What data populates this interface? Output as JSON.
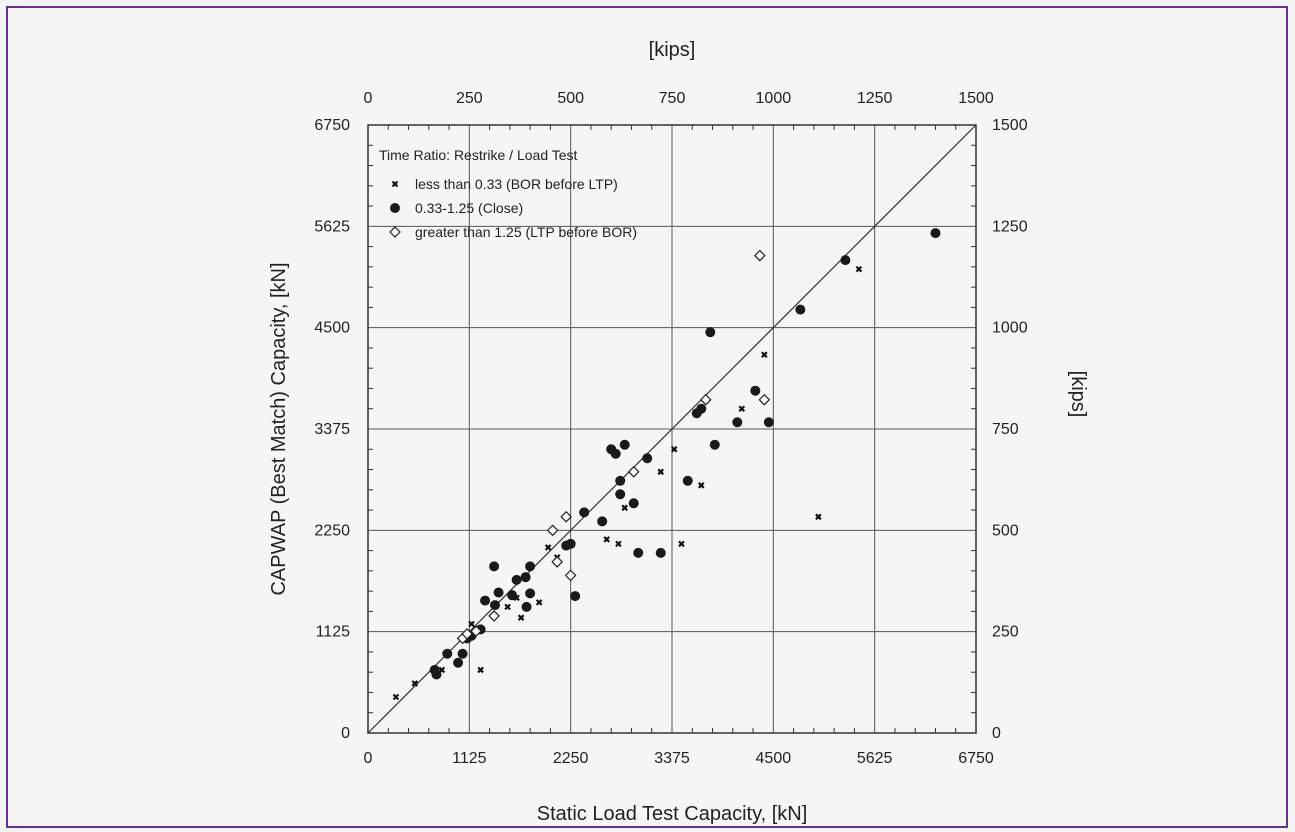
{
  "chart_data": {
    "type": "scatter",
    "xlabel": "Static Load Test Capacity, [kN]",
    "ylabel": "CAPWAP (Best Match) Capacity, [kN]",
    "x2label": "[kips]",
    "y2label": "[kips]",
    "xlim": [
      0,
      6750
    ],
    "ylim": [
      0,
      6750
    ],
    "x2lim": [
      0,
      1500
    ],
    "y2lim": [
      0,
      1500
    ],
    "x_ticks": [
      "0",
      "1125",
      "2250",
      "3375",
      "4500",
      "5625",
      "6750"
    ],
    "y_ticks": [
      "0",
      "1125",
      "2250",
      "3375",
      "4500",
      "5625",
      "6750"
    ],
    "x2_ticks": [
      "0",
      "250",
      "500",
      "750",
      "1000",
      "1250",
      "1500"
    ],
    "y2_ticks": [
      "0",
      "250",
      "500",
      "750",
      "1000",
      "1250",
      "1500"
    ],
    "grid": true,
    "reference_line": {
      "from": [
        0,
        0
      ],
      "to": [
        6750,
        6750
      ]
    },
    "legend": {
      "title": "Time Ratio: Restrike / Load Test",
      "placement": "top-left"
    },
    "series": [
      {
        "name": "less than 0.33 (BOR before LTP)",
        "marker": "small-cross",
        "points": [
          [
            310,
            400
          ],
          [
            520,
            550
          ],
          [
            820,
            700
          ],
          [
            1050,
            880
          ],
          [
            1150,
            1210
          ],
          [
            1250,
            700
          ],
          [
            1550,
            1400
          ],
          [
            1650,
            1500
          ],
          [
            1700,
            1280
          ],
          [
            1900,
            1450
          ],
          [
            2000,
            2060
          ],
          [
            2100,
            1950
          ],
          [
            2650,
            2150
          ],
          [
            2780,
            2100
          ],
          [
            2850,
            2500
          ],
          [
            3250,
            2900
          ],
          [
            3400,
            3150
          ],
          [
            3480,
            2100
          ],
          [
            3700,
            2750
          ],
          [
            4150,
            3600
          ],
          [
            4400,
            4200
          ],
          [
            5000,
            2400
          ],
          [
            5450,
            5150
          ]
        ]
      },
      {
        "name": "0.33-1.25 (Close)",
        "marker": "filled-circle",
        "points": [
          [
            740,
            700
          ],
          [
            760,
            650
          ],
          [
            880,
            880
          ],
          [
            1000,
            780
          ],
          [
            1050,
            880
          ],
          [
            1100,
            1050
          ],
          [
            1150,
            1080
          ],
          [
            1250,
            1150
          ],
          [
            1300,
            1470
          ],
          [
            1400,
            1850
          ],
          [
            1410,
            1420
          ],
          [
            1450,
            1560
          ],
          [
            1600,
            1530
          ],
          [
            1650,
            1700
          ],
          [
            1750,
            1730
          ],
          [
            1760,
            1400
          ],
          [
            1800,
            1550
          ],
          [
            1800,
            1850
          ],
          [
            2200,
            2080
          ],
          [
            2250,
            2100
          ],
          [
            2300,
            1520
          ],
          [
            2400,
            2450
          ],
          [
            2600,
            2350
          ],
          [
            2700,
            3150
          ],
          [
            2750,
            3100
          ],
          [
            2800,
            2650
          ],
          [
            2800,
            2800
          ],
          [
            2850,
            3200
          ],
          [
            2950,
            2550
          ],
          [
            3000,
            2000
          ],
          [
            3100,
            3050
          ],
          [
            3250,
            2000
          ],
          [
            3550,
            2800
          ],
          [
            3650,
            3550
          ],
          [
            3700,
            3600
          ],
          [
            3800,
            4450
          ],
          [
            3850,
            3200
          ],
          [
            4100,
            3450
          ],
          [
            4300,
            3800
          ],
          [
            4450,
            3450
          ],
          [
            4800,
            4700
          ],
          [
            5300,
            5250
          ],
          [
            6300,
            5550
          ]
        ]
      },
      {
        "name": "greater than 1.25 (LTP before BOR)",
        "marker": "open-diamond",
        "points": [
          [
            1050,
            1050
          ],
          [
            1100,
            1100
          ],
          [
            1200,
            1130
          ],
          [
            1400,
            1300
          ],
          [
            2050,
            2250
          ],
          [
            2100,
            1900
          ],
          [
            2200,
            2400
          ],
          [
            2250,
            1750
          ],
          [
            2950,
            2900
          ],
          [
            3750,
            3700
          ],
          [
            4350,
            5300
          ],
          [
            4400,
            3700
          ]
        ]
      }
    ]
  }
}
